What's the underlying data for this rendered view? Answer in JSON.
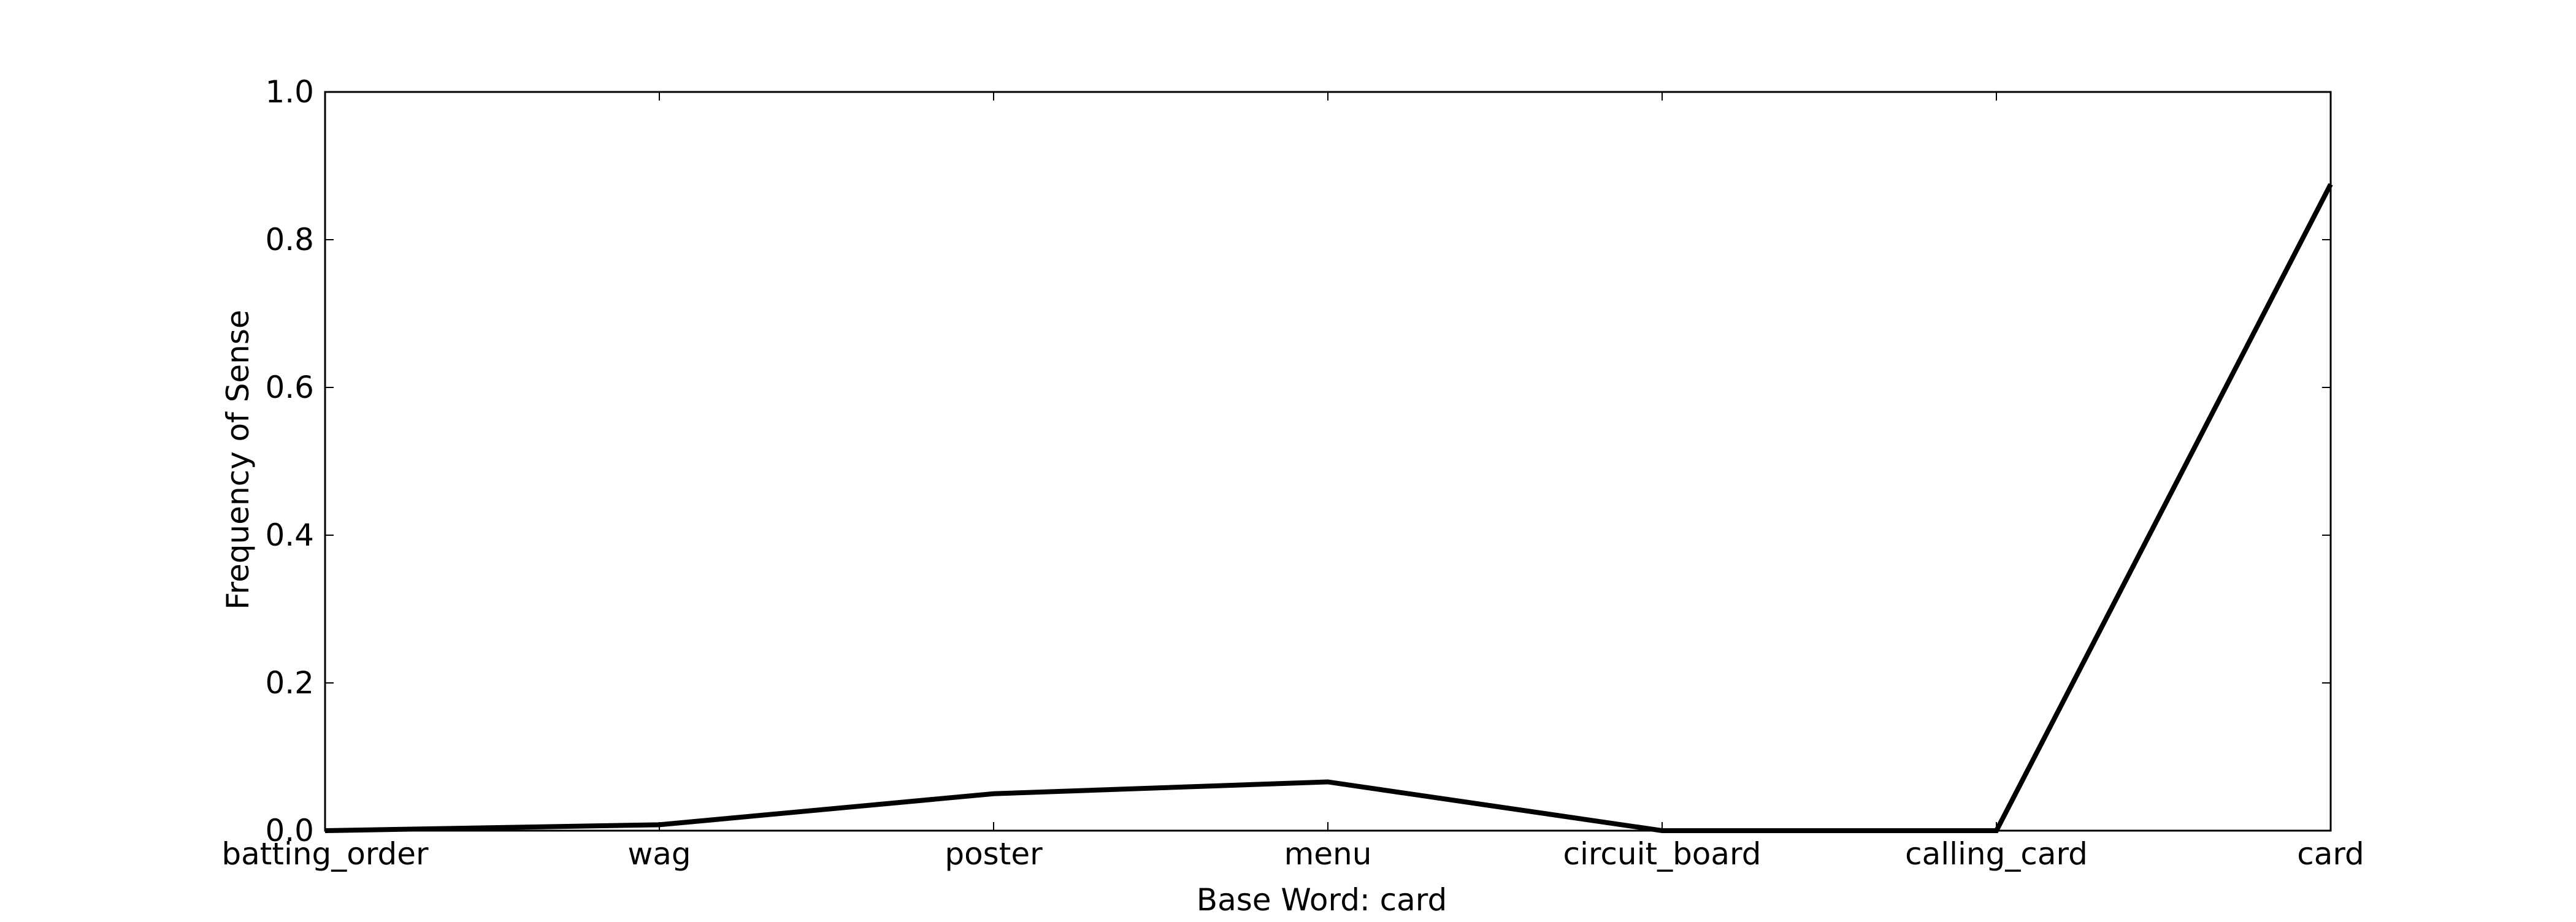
{
  "chart_data": {
    "type": "line",
    "title": "",
    "xlabel": "Base Word: card",
    "ylabel": "Frequency of Sense",
    "categories": [
      "batting_order",
      "wag",
      "poster",
      "menu",
      "circuit_board",
      "calling_card",
      "card"
    ],
    "series": [
      {
        "values": [
          0.0,
          0.008,
          0.05,
          0.066,
          0.0,
          0.0,
          0.875
        ]
      }
    ],
    "ylim": [
      0.0,
      1.0
    ],
    "yticks": [
      "0.0",
      "0.2",
      "0.4",
      "0.6",
      "0.8",
      "1.0"
    ],
    "grid": false,
    "legend": "none",
    "line_color": "#000000"
  }
}
